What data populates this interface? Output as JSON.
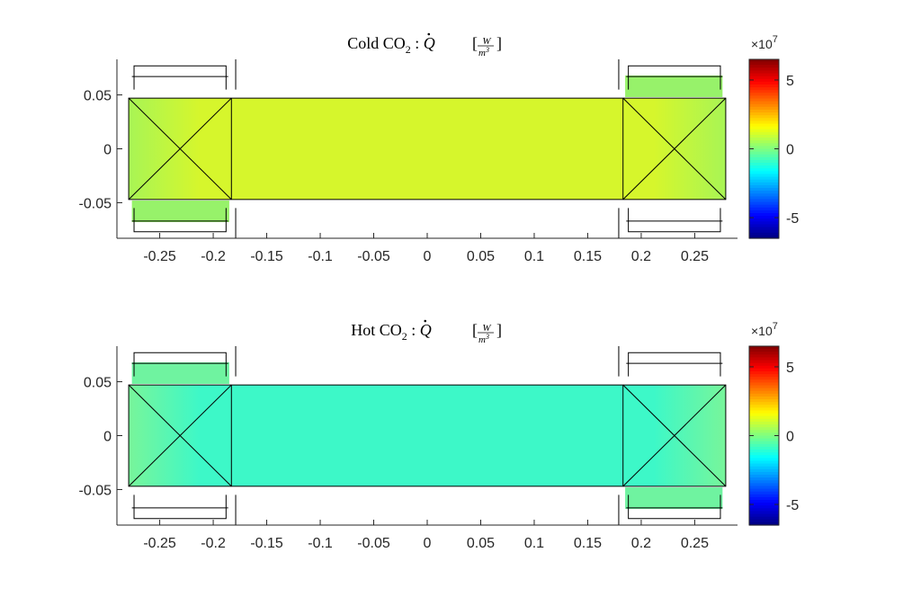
{
  "chart_data": [
    {
      "type": "heatmap",
      "title": {
        "main": "Cold CO",
        "sub": "2",
        "sep": " : ",
        "qty": "Q",
        "unit_num": "W",
        "unit_den": "m",
        "unit_den_exp": "3"
      },
      "xlim": [
        -0.29,
        0.29
      ],
      "ylim": [
        -0.083,
        0.083
      ],
      "xticks": [
        -0.25,
        -0.2,
        -0.15,
        -0.1,
        -0.05,
        0,
        0.05,
        0.1,
        0.15,
        0.2,
        0.25
      ],
      "xtick_labels": [
        "-0.25",
        "-0.2",
        "-0.15",
        "-0.1",
        "-0.05",
        "0",
        "0.05",
        "0.1",
        "0.15",
        "0.2",
        "0.25"
      ],
      "yticks": [
        0.05,
        0,
        -0.05
      ],
      "ytick_labels": [
        "0.05",
        "0",
        "-0.05"
      ],
      "colorbar": {
        "colormap": "jet",
        "clim": [
          -6.5,
          6.5
        ],
        "ticks": [
          5,
          0,
          -5
        ],
        "tick_labels": [
          "5",
          "0",
          "-5"
        ],
        "multiplier_base": "×10",
        "multiplier_exp": "7"
      },
      "field_color": "#d6f62c",
      "field_edge_color": "#a8f555",
      "pad_color": "#97f26a"
    },
    {
      "type": "heatmap",
      "title": {
        "main": "Hot CO",
        "sub": "2",
        "sep": " : ",
        "qty": "Q",
        "unit_num": "W",
        "unit_den": "m",
        "unit_den_exp": "3"
      },
      "xlim": [
        -0.29,
        0.29
      ],
      "ylim": [
        -0.083,
        0.083
      ],
      "xticks": [
        -0.25,
        -0.2,
        -0.15,
        -0.1,
        -0.05,
        0,
        0.05,
        0.1,
        0.15,
        0.2,
        0.25
      ],
      "xtick_labels": [
        "-0.25",
        "-0.2",
        "-0.15",
        "-0.1",
        "-0.05",
        "0",
        "0.05",
        "0.1",
        "0.15",
        "0.2",
        "0.25"
      ],
      "yticks": [
        0.05,
        0,
        -0.05
      ],
      "ytick_labels": [
        "0.05",
        "0",
        "-0.05"
      ],
      "colorbar": {
        "colormap": "jet",
        "clim": [
          -6.5,
          6.5
        ],
        "ticks": [
          5,
          0,
          -5
        ],
        "tick_labels": [
          "5",
          "0",
          "-5"
        ],
        "multiplier_base": "×10",
        "multiplier_exp": "7"
      },
      "field_color": "#3df8c8",
      "field_edge_color": "#78f59a",
      "pad_color": "#6ff3a0"
    }
  ]
}
